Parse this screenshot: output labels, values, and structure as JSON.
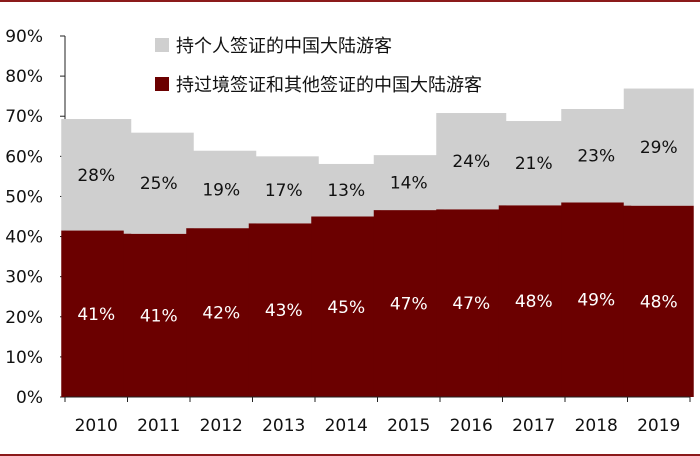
{
  "colors": {
    "top_segment": "#cfcfcf",
    "bottom_segment": "#6b0000",
    "border": "#8b1a1a",
    "axis": "#222222"
  },
  "chart_data": {
    "type": "bar",
    "stacked": true,
    "categories": [
      "2010",
      "2011",
      "2012",
      "2013",
      "2014",
      "2015",
      "2016",
      "2017",
      "2018",
      "2019"
    ],
    "series": [
      {
        "name": "持过境签证和其他签证的中国大陆游客",
        "values": [
          41,
          41,
          42,
          43,
          45,
          47,
          47,
          48,
          49,
          48
        ],
        "labels": [
          "41%",
          "41%",
          "42%",
          "43%",
          "45%",
          "47%",
          "47%",
          "48%",
          "49%",
          "48%"
        ],
        "plot_values": [
          41.5,
          40.7,
          42.1,
          43.3,
          45.0,
          46.6,
          46.8,
          47.8,
          48.5,
          47.7
        ]
      },
      {
        "name": "持个人签证的中国大陆游客",
        "values": [
          28,
          25,
          19,
          17,
          13,
          14,
          24,
          21,
          23,
          29
        ],
        "labels": [
          "28%",
          "25%",
          "19%",
          "17%",
          "13%",
          "14%",
          "24%",
          "21%",
          "23%",
          "29%"
        ],
        "plot_values": [
          27.8,
          25.2,
          19.3,
          16.7,
          13.1,
          13.7,
          24.0,
          21.0,
          23.3,
          29.2
        ]
      }
    ],
    "y_ticks": [
      "0%",
      "10%",
      "20%",
      "30%",
      "40%",
      "50%",
      "60%",
      "70%",
      "80%",
      "90%"
    ],
    "ylim": [
      0,
      90
    ],
    "grid": false,
    "legend_position": "top-left"
  }
}
